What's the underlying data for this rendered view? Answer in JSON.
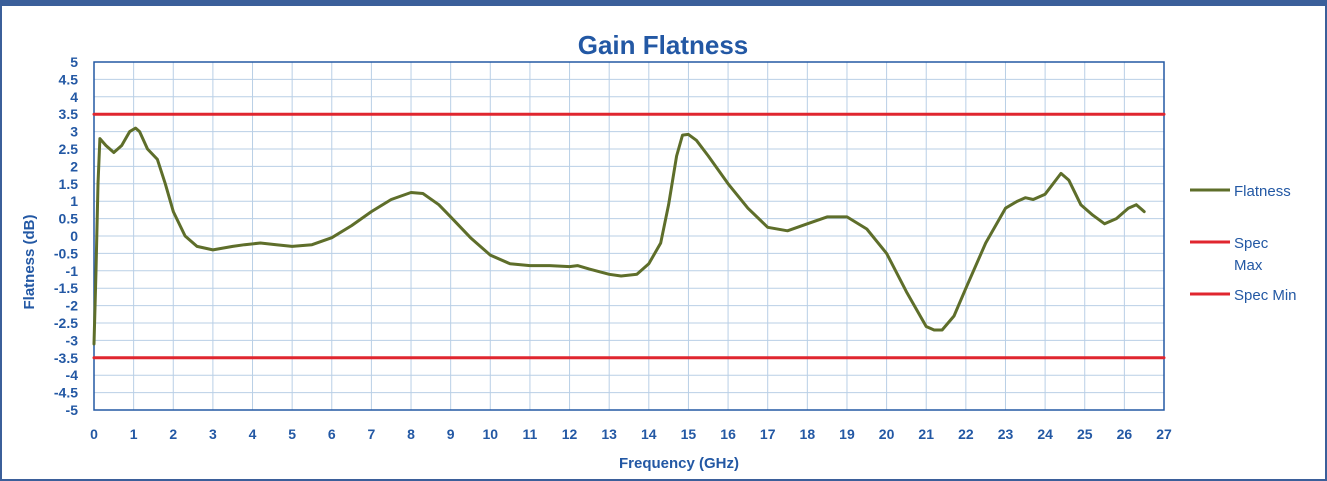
{
  "chart_data": {
    "type": "line",
    "title": "Gain Flatness",
    "xlabel": "Frequency (GHz)",
    "ylabel": "Flatness (dB)",
    "xlim": [
      0,
      27
    ],
    "ylim": [
      -5,
      5
    ],
    "x_ticks": [
      "0",
      "1",
      "2",
      "3",
      "4",
      "5",
      "6",
      "7",
      "8",
      "9",
      "10",
      "11",
      "12",
      "13",
      "14",
      "15",
      "16",
      "17",
      "18",
      "19",
      "20",
      "21",
      "22",
      "23",
      "24",
      "25",
      "26",
      "27"
    ],
    "y_ticks": [
      "5",
      "4.5",
      "4",
      "3.5",
      "3",
      "2.5",
      "2",
      "1.5",
      "1",
      "0.5",
      "0",
      "-0.5",
      "-1",
      "-1.5",
      "-2",
      "-2.5",
      "-3",
      "-3.5",
      "-4",
      "-4.5",
      "-5"
    ],
    "grid": true,
    "legend_position": "right",
    "colors": {
      "flatness": "#5e6e2a",
      "spec": "#e0262f",
      "axis": "#2358a4",
      "grid": "#b9cfe6",
      "title": "#2358a4"
    },
    "series": [
      {
        "name": "Flatness",
        "points": [
          [
            0.0,
            -3.1
          ],
          [
            0.05,
            -1.0
          ],
          [
            0.1,
            1.5
          ],
          [
            0.15,
            2.8
          ],
          [
            0.3,
            2.6
          ],
          [
            0.5,
            2.4
          ],
          [
            0.7,
            2.6
          ],
          [
            0.9,
            3.0
          ],
          [
            1.05,
            3.1
          ],
          [
            1.15,
            3.0
          ],
          [
            1.35,
            2.5
          ],
          [
            1.6,
            2.2
          ],
          [
            1.8,
            1.5
          ],
          [
            2.0,
            0.7
          ],
          [
            2.3,
            0.0
          ],
          [
            2.6,
            -0.3
          ],
          [
            3.0,
            -0.4
          ],
          [
            3.5,
            -0.3
          ],
          [
            3.8,
            -0.25
          ],
          [
            4.2,
            -0.2
          ],
          [
            4.6,
            -0.25
          ],
          [
            5.0,
            -0.3
          ],
          [
            5.5,
            -0.25
          ],
          [
            6.0,
            -0.05
          ],
          [
            6.5,
            0.3
          ],
          [
            7.0,
            0.7
          ],
          [
            7.5,
            1.05
          ],
          [
            8.0,
            1.25
          ],
          [
            8.3,
            1.22
          ],
          [
            8.7,
            0.9
          ],
          [
            9.0,
            0.55
          ],
          [
            9.5,
            -0.05
          ],
          [
            10.0,
            -0.55
          ],
          [
            10.5,
            -0.8
          ],
          [
            11.0,
            -0.85
          ],
          [
            11.5,
            -0.85
          ],
          [
            12.0,
            -0.88
          ],
          [
            12.2,
            -0.85
          ],
          [
            12.5,
            -0.95
          ],
          [
            13.0,
            -1.1
          ],
          [
            13.3,
            -1.15
          ],
          [
            13.7,
            -1.1
          ],
          [
            14.0,
            -0.8
          ],
          [
            14.3,
            -0.2
          ],
          [
            14.5,
            0.9
          ],
          [
            14.7,
            2.3
          ],
          [
            14.85,
            2.9
          ],
          [
            15.0,
            2.92
          ],
          [
            15.2,
            2.75
          ],
          [
            15.5,
            2.3
          ],
          [
            16.0,
            1.5
          ],
          [
            16.5,
            0.8
          ],
          [
            17.0,
            0.25
          ],
          [
            17.5,
            0.15
          ],
          [
            18.0,
            0.35
          ],
          [
            18.5,
            0.55
          ],
          [
            19.0,
            0.55
          ],
          [
            19.5,
            0.2
          ],
          [
            20.0,
            -0.5
          ],
          [
            20.5,
            -1.6
          ],
          [
            21.0,
            -2.6
          ],
          [
            21.2,
            -2.7
          ],
          [
            21.4,
            -2.7
          ],
          [
            21.7,
            -2.3
          ],
          [
            22.0,
            -1.5
          ],
          [
            22.5,
            -0.2
          ],
          [
            23.0,
            0.8
          ],
          [
            23.3,
            1.0
          ],
          [
            23.5,
            1.1
          ],
          [
            23.7,
            1.05
          ],
          [
            24.0,
            1.2
          ],
          [
            24.4,
            1.8
          ],
          [
            24.6,
            1.6
          ],
          [
            24.9,
            0.9
          ],
          [
            25.2,
            0.6
          ],
          [
            25.5,
            0.35
          ],
          [
            25.8,
            0.5
          ],
          [
            26.1,
            0.8
          ],
          [
            26.3,
            0.9
          ],
          [
            26.5,
            0.7
          ]
        ]
      },
      {
        "name": "Spec Max",
        "points": [
          [
            0,
            3.5
          ],
          [
            27,
            3.5
          ]
        ]
      },
      {
        "name": "Spec Min",
        "points": [
          [
            0,
            -3.5
          ],
          [
            27,
            -3.5
          ]
        ]
      }
    ],
    "legend": [
      {
        "label_lines": [
          "Flatness"
        ],
        "key": "flatness"
      },
      {
        "label_lines": [
          "Spec",
          "Max"
        ],
        "key": "spec"
      },
      {
        "label_lines": [
          "Spec Min"
        ],
        "key": "spec"
      }
    ]
  }
}
